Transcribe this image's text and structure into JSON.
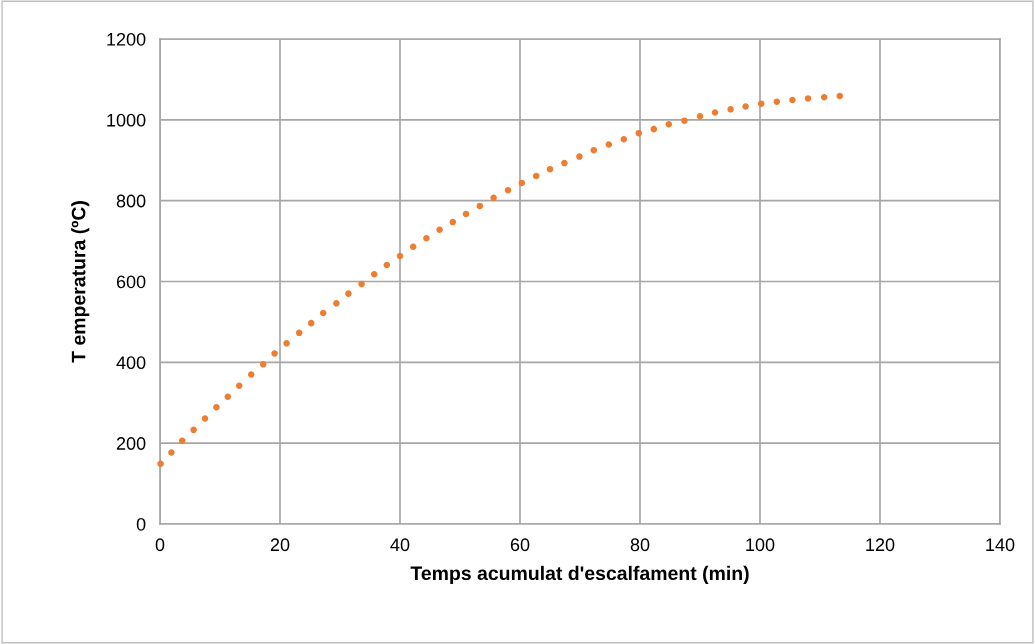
{
  "chart_data": {
    "type": "scatter",
    "xlabel": "Temps acumulat d'escalfament (min)",
    "ylabel": "T emperatura (ºC)",
    "x": [
      0.1,
      1.9,
      3.7,
      5.6,
      7.5,
      9.4,
      11.3,
      13.2,
      15.2,
      17.2,
      19.1,
      21.1,
      23.2,
      25.2,
      27.2,
      29.4,
      31.4,
      33.6,
      35.7,
      37.8,
      40.0,
      42.2,
      44.4,
      46.6,
      48.8,
      51.0,
      53.3,
      55.6,
      58.0,
      60.3,
      62.7,
      65.0,
      67.4,
      69.9,
      72.3,
      74.8,
      77.3,
      79.8,
      82.3,
      84.8,
      87.4,
      90.0,
      92.5,
      95.1,
      97.6,
      100.2,
      102.8,
      105.4,
      108.0,
      110.7,
      113.3
    ],
    "series": [
      {
        "color": "#ed7d31",
        "values": [
          149,
          177,
          206,
          233,
          261,
          289,
          315,
          342,
          370,
          395,
          422,
          447,
          473,
          497,
          522,
          546,
          570,
          594,
          618,
          641,
          663,
          686,
          707,
          728,
          747,
          767,
          787,
          807,
          826,
          844,
          861,
          878,
          893,
          909,
          925,
          939,
          952,
          967,
          977,
          989,
          998,
          1009,
          1018,
          1026,
          1033,
          1040,
          1045,
          1049,
          1053,
          1056,
          1059
        ]
      }
    ],
    "xlim": [
      0,
      140
    ],
    "xticks": [
      0,
      20,
      40,
      60,
      80,
      100,
      120,
      140
    ],
    "ylim": [
      0,
      1200
    ],
    "yticks": [
      0,
      200,
      400,
      600,
      800,
      1000,
      1200
    ],
    "grid": true,
    "marker": "circle",
    "legend": false
  }
}
